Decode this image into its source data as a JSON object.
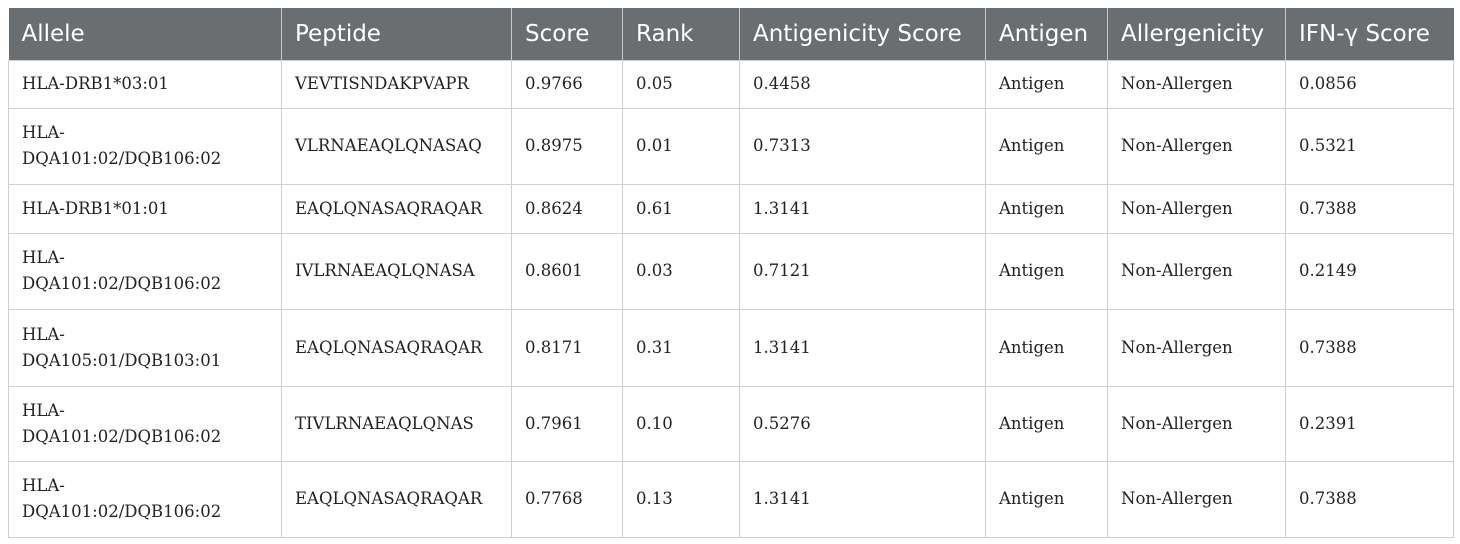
{
  "table": {
    "headers": [
      "Allele",
      "Peptide",
      "Score",
      "Rank",
      "Antigenicity Score",
      "Antigen",
      "Allergenicity",
      "IFN-γ Score"
    ],
    "rows": [
      {
        "allele": "HLA-DRB1*03:01",
        "peptide": "VEVTISNDAKPVAPR",
        "score": "0.9766",
        "rank": "0.05",
        "antigenicity_score": "0.4458",
        "antigen": "Antigen",
        "allergenicity": "Non-Allergen",
        "ifn_score": "0.0856"
      },
      {
        "allele": "HLA-DQA101:02/DQB106:02",
        "peptide": "VLRNAEAQLQNASAQ",
        "score": "0.8975",
        "rank": "0.01",
        "antigenicity_score": "0.7313",
        "antigen": "Antigen",
        "allergenicity": "Non-Allergen",
        "ifn_score": "0.5321"
      },
      {
        "allele": "HLA-DRB1*01:01",
        "peptide": "EAQLQNASAQRAQAR",
        "score": "0.8624",
        "rank": "0.61",
        "antigenicity_score": "1.3141",
        "antigen": "Antigen",
        "allergenicity": "Non-Allergen",
        "ifn_score": "0.7388"
      },
      {
        "allele": "HLA-DQA101:02/DQB106:02",
        "peptide": "IVLRNAEAQLQNASA",
        "score": "0.8601",
        "rank": "0.03",
        "antigenicity_score": "0.7121",
        "antigen": "Antigen",
        "allergenicity": "Non-Allergen",
        "ifn_score": "0.2149"
      },
      {
        "allele": "HLA-DQA105:01/DQB103:01",
        "peptide": "EAQLQNASAQRAQAR",
        "score": "0.8171",
        "rank": "0.31",
        "antigenicity_score": "1.3141",
        "antigen": "Antigen",
        "allergenicity": "Non-Allergen",
        "ifn_score": "0.7388"
      },
      {
        "allele": "HLA-DQA101:02/DQB106:02",
        "peptide": "TIVLRNAEAQLQNAS",
        "score": "0.7961",
        "rank": "0.10",
        "antigenicity_score": "0.5276",
        "antigen": "Antigen",
        "allergenicity": "Non-Allergen",
        "ifn_score": "0.2391"
      },
      {
        "allele": "HLA-DQA101:02/DQB106:02",
        "peptide": "EAQLQNASAQRAQAR",
        "score": "0.7768",
        "rank": "0.13",
        "antigenicity_score": "1.3141",
        "antigen": "Antigen",
        "allergenicity": "Non-Allergen",
        "ifn_score": "0.7388"
      }
    ]
  }
}
